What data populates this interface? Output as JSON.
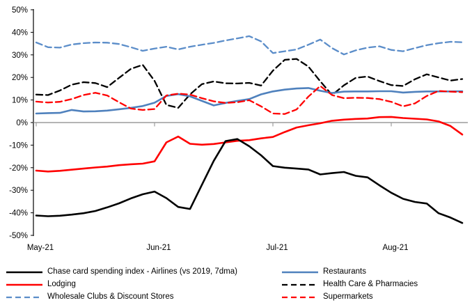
{
  "chart": {
    "y_axis": {
      "tick_labels": [
        "50%",
        "40%",
        "30%",
        "20%",
        "10%",
        "0%",
        "-10%",
        "-20%",
        "-30%",
        "-40%",
        "-50%"
      ],
      "tick_values": [
        50,
        40,
        30,
        20,
        10,
        0,
        -10,
        -20,
        -30,
        -40,
        -50
      ]
    },
    "x_axis": {
      "tick_labels": [
        "May-21",
        "Jun-21",
        "Jul-21",
        "Aug-21"
      ]
    },
    "colors": {
      "axis": "#000000",
      "zero_line": "#9c9c9c",
      "black_series": "#000000",
      "red_series": "#ff0000",
      "blue_solid": "#4f81bd",
      "blue_dashed": "#5b8dc9"
    }
  },
  "chart_data": {
    "type": "line",
    "title": "",
    "xlabel": "",
    "ylabel": "",
    "ylim": [
      -50,
      50
    ],
    "grid": false,
    "legend_position": "bottom",
    "x": [
      "May 1",
      "May 4",
      "May 7",
      "May 10",
      "May 13",
      "May 16",
      "May 20",
      "May 23",
      "May 26",
      "May 29",
      "Jun 1",
      "Jun 4",
      "Jun 7",
      "Jun 10",
      "Jun 13",
      "Jun 16",
      "Jun 19",
      "Jun 22",
      "Jun 25",
      "Jun 28",
      "Jul 1",
      "Jul 4",
      "Jul 7",
      "Jul 10",
      "Jul 13",
      "Jul 16",
      "Jul 19",
      "Jul 22",
      "Jul 25",
      "Jul 28",
      "Aug 1",
      "Aug 4",
      "Aug 7",
      "Aug 10",
      "Aug 13",
      "Aug 16",
      "Aug 19"
    ],
    "x_tick_indices": [
      0,
      10,
      20,
      30
    ],
    "series": [
      {
        "name": "Chase card spending index - Airlines (vs 2019, 7dma)",
        "color": "#000000",
        "dash": false,
        "values": [
          -41.2,
          -41.5,
          -41.3,
          -40.8,
          -40.2,
          -39.2,
          -37.6,
          -35.8,
          -33.6,
          -31.8,
          -30.6,
          -33.5,
          -37.4,
          -38.3,
          -27.6,
          -17.0,
          -8.2,
          -7.3,
          -10.5,
          -14.5,
          -19.3,
          -20.0,
          -20.4,
          -20.8,
          -23.0,
          -22.4,
          -21.9,
          -23.6,
          -24.3,
          -27.8,
          -31.1,
          -33.8,
          -35.2,
          -35.9,
          -40.2,
          -42.1,
          -44.5
        ]
      },
      {
        "name": "Lodging",
        "color": "#ff0000",
        "dash": false,
        "values": [
          -21.3,
          -21.7,
          -21.4,
          -20.9,
          -20.4,
          -19.9,
          -19.5,
          -18.9,
          -18.5,
          -18.2,
          -17.2,
          -8.8,
          -6.2,
          -9.4,
          -9.8,
          -9.5,
          -8.8,
          -8.1,
          -7.8,
          -7.0,
          -6.4,
          -4.2,
          -2.2,
          -1.2,
          -0.3,
          0.8,
          1.3,
          1.6,
          1.8,
          2.4,
          2.5,
          2.0,
          1.7,
          1.4,
          0.5,
          -1.5,
          -5.3
        ]
      },
      {
        "name": "Wholesale Clubs & Discount Stores",
        "color": "#5b8dc9",
        "dash": true,
        "values": [
          35.5,
          33.4,
          33.2,
          34.6,
          35.2,
          35.5,
          35.4,
          34.8,
          33.4,
          31.8,
          32.8,
          33.6,
          32.4,
          33.6,
          34.5,
          35.3,
          36.4,
          37.3,
          38.3,
          36.0,
          30.8,
          31.6,
          32.4,
          34.5,
          36.8,
          33.0,
          30.2,
          32.0,
          33.2,
          33.8,
          32.2,
          31.6,
          33.0,
          34.3,
          35.2,
          35.8,
          35.6
        ]
      },
      {
        "name": "Restaurants",
        "color": "#4f81bd",
        "dash": false,
        "values": [
          4.0,
          4.2,
          4.3,
          5.6,
          4.9,
          5.0,
          5.3,
          5.9,
          6.5,
          7.3,
          8.8,
          11.8,
          12.6,
          11.6,
          9.6,
          7.6,
          8.7,
          9.6,
          10.4,
          12.5,
          13.8,
          14.6,
          15.1,
          15.3,
          14.1,
          13.1,
          13.7,
          13.8,
          13.8,
          13.9,
          13.9,
          13.3,
          13.6,
          13.8,
          13.8,
          13.8,
          13.9
        ]
      },
      {
        "name": "Health Care & Pharmacies",
        "color": "#000000",
        "dash": true,
        "values": [
          12.4,
          12.2,
          14.2,
          16.8,
          17.9,
          17.5,
          15.7,
          19.8,
          23.8,
          25.6,
          18.5,
          7.8,
          6.5,
          12.5,
          17.0,
          18.2,
          17.4,
          17.3,
          17.6,
          16.4,
          23.0,
          27.8,
          28.2,
          24.8,
          18.3,
          12.2,
          16.5,
          19.8,
          20.4,
          18.4,
          16.6,
          16.2,
          19.2,
          21.4,
          20.0,
          18.6,
          19.3
        ]
      },
      {
        "name": "Supermarkets",
        "color": "#ff0000",
        "dash": true,
        "values": [
          9.3,
          8.9,
          9.2,
          10.4,
          12.2,
          13.2,
          12.0,
          9.0,
          6.2,
          5.6,
          6.0,
          12.0,
          12.8,
          12.4,
          10.8,
          9.4,
          8.7,
          9.0,
          9.9,
          7.2,
          4.0,
          3.8,
          5.8,
          11.5,
          16.2,
          12.2,
          10.8,
          11.0,
          10.9,
          10.4,
          9.2,
          7.2,
          8.5,
          11.8,
          14.0,
          13.7,
          13.5
        ]
      }
    ]
  },
  "legend": {
    "columns": [
      {
        "series_indices": [
          0,
          1,
          2
        ]
      },
      {
        "series_indices": [
          3,
          4,
          5
        ]
      }
    ]
  }
}
